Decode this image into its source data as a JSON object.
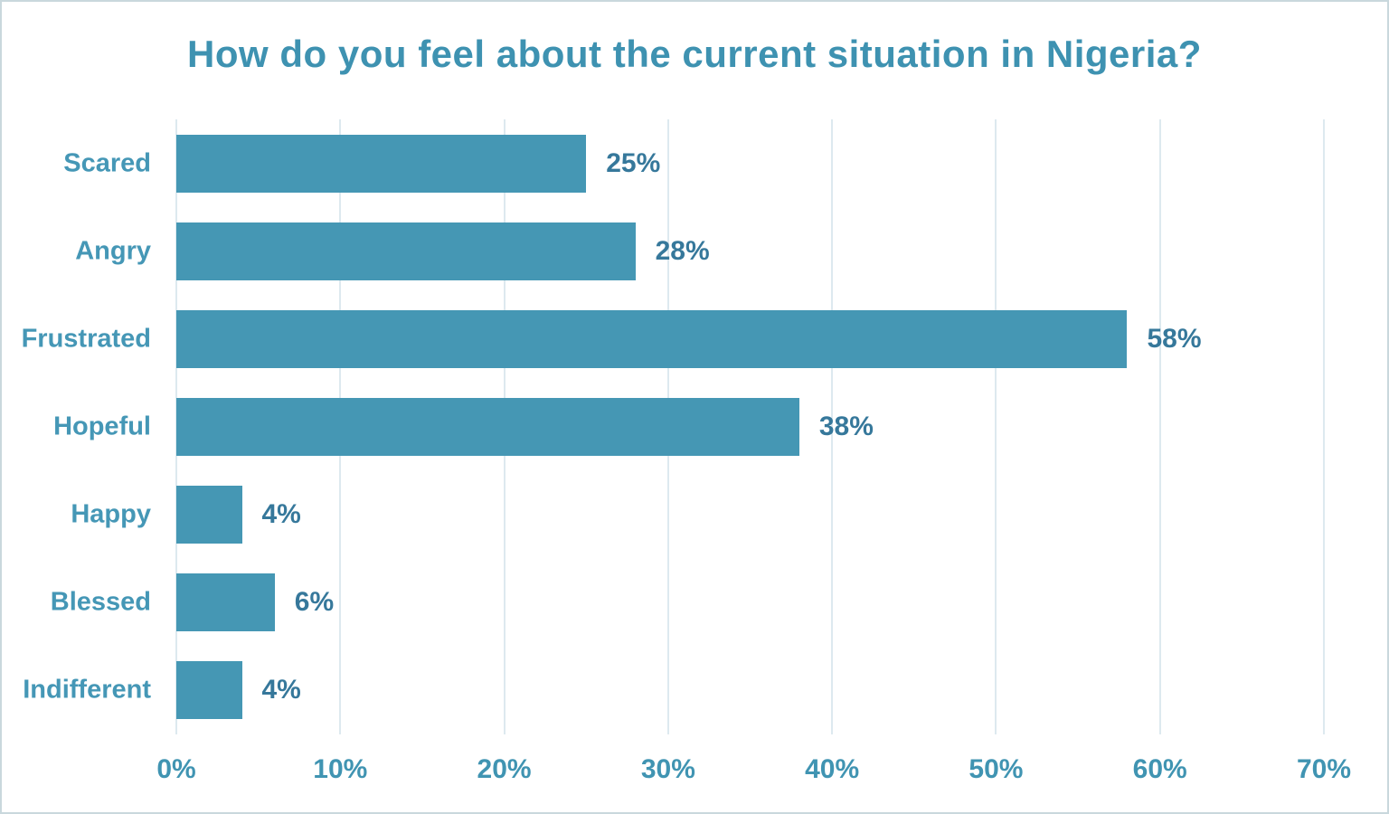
{
  "chart_data": {
    "type": "bar",
    "orientation": "horizontal",
    "title": "How do you feel about the current situation in Nigeria?",
    "categories": [
      "Scared",
      "Angry",
      "Frustrated",
      "Hopeful",
      "Happy",
      "Blessed",
      "Indifferent"
    ],
    "values": [
      25,
      28,
      58,
      38,
      4,
      6,
      4
    ],
    "value_labels": [
      "25%",
      "28%",
      "58%",
      "38%",
      "4%",
      "6%",
      "4%"
    ],
    "x_ticks": [
      "0%",
      "10%",
      "20%",
      "30%",
      "40%",
      "50%",
      "60%",
      "70%"
    ],
    "x_tick_values": [
      0,
      10,
      20,
      30,
      40,
      50,
      60,
      70
    ],
    "xlim": [
      0,
      70
    ],
    "xlabel": "",
    "ylabel": "",
    "grid": "vertical-only",
    "legend": "none",
    "colors": {
      "bar": "#4597b4",
      "title": "#3e92b1",
      "category_label": "#4597b6",
      "value_label": "#36789b",
      "tick_label": "#4094b2",
      "gridline": "#dde9ef",
      "border": "#c9d8dd",
      "background": "#ffffff"
    }
  }
}
